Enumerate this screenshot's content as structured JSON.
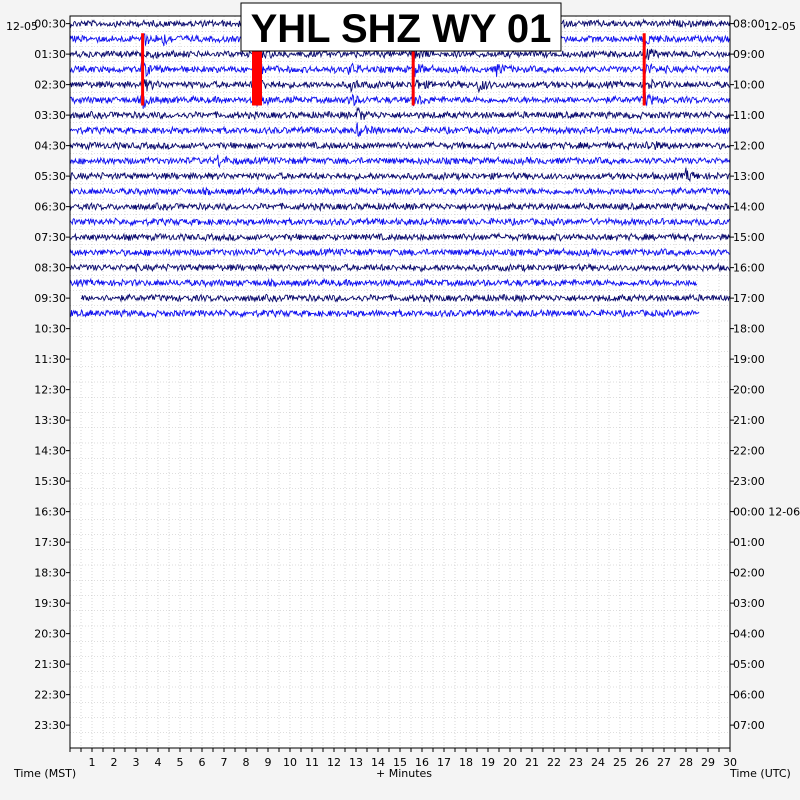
{
  "chart_data": {
    "type": "line",
    "title": "YHL SHZ WY 01",
    "date_left": "12-05",
    "date_right": "12-05",
    "left_axis_label": "Time (MST)",
    "right_axis_label": "Time (UTC)",
    "x_axis_label": "+ Minutes",
    "x_ticks": [
      "1",
      "2",
      "3",
      "4",
      "5",
      "6",
      "7",
      "8",
      "9",
      "10",
      "11",
      "12",
      "13",
      "14",
      "15",
      "16",
      "17",
      "18",
      "19",
      "20",
      "21",
      "22",
      "23",
      "24",
      "25",
      "26",
      "27",
      "28",
      "29",
      "30"
    ],
    "xlim": [
      0,
      30
    ],
    "left_tick_labels": [
      "00:30",
      "01:30",
      "02:30",
      "03:30",
      "04:30",
      "05:30",
      "06:30",
      "07:30",
      "08:30",
      "09:30",
      "10:30",
      "11:30",
      "12:30",
      "13:30",
      "14:30",
      "15:30",
      "16:30",
      "17:30",
      "18:30",
      "19:30",
      "20:30",
      "21:30",
      "22:30",
      "23:30"
    ],
    "right_tick_labels": [
      "08:00",
      "09:00",
      "10:00",
      "11:00",
      "12:00",
      "13:00",
      "14:00",
      "15:00",
      "16:00",
      "17:00",
      "18:00",
      "19:00",
      "20:00",
      "21:00",
      "22:00",
      "23:00",
      "00:00 12-06",
      "01:00",
      "02:00",
      "03:00",
      "04:00",
      "05:00",
      "06:00",
      "07:00"
    ],
    "rows_per_hour": 2,
    "grid": true,
    "trace_colors": [
      "#0a0a6e",
      "#1010f0"
    ],
    "clip_color": "#ff0000",
    "traces_recorded": 20,
    "last_trace_end_minute": 28.6,
    "events": [
      {
        "minute": 3.3,
        "start_row": 1,
        "end_row": 5,
        "clipped": true
      },
      {
        "minute": 8.5,
        "start_row": 1,
        "end_row": 5,
        "clipped": true
      },
      {
        "minute": 15.6,
        "start_row": 1,
        "end_row": 5,
        "clipped": true
      },
      {
        "minute": 26.1,
        "start_row": 1,
        "end_row": 5,
        "clipped": true
      },
      {
        "minute": 4.2,
        "start_row": 1,
        "end_row": 1,
        "clipped": false
      },
      {
        "minute": 12.7,
        "start_row": 3,
        "end_row": 5,
        "clipped": false
      },
      {
        "minute": 13.1,
        "start_row": 6,
        "end_row": 7,
        "clipped": false
      },
      {
        "minute": 19.4,
        "start_row": 3,
        "end_row": 3,
        "clipped": false
      },
      {
        "minute": 18.6,
        "start_row": 4,
        "end_row": 4,
        "clipped": false
      },
      {
        "minute": 26.2,
        "start_row": 8,
        "end_row": 8,
        "clipped": false
      },
      {
        "minute": 6.7,
        "start_row": 9,
        "end_row": 9,
        "clipped": false
      },
      {
        "minute": 28.0,
        "start_row": 10,
        "end_row": 10,
        "clipped": false
      }
    ]
  }
}
